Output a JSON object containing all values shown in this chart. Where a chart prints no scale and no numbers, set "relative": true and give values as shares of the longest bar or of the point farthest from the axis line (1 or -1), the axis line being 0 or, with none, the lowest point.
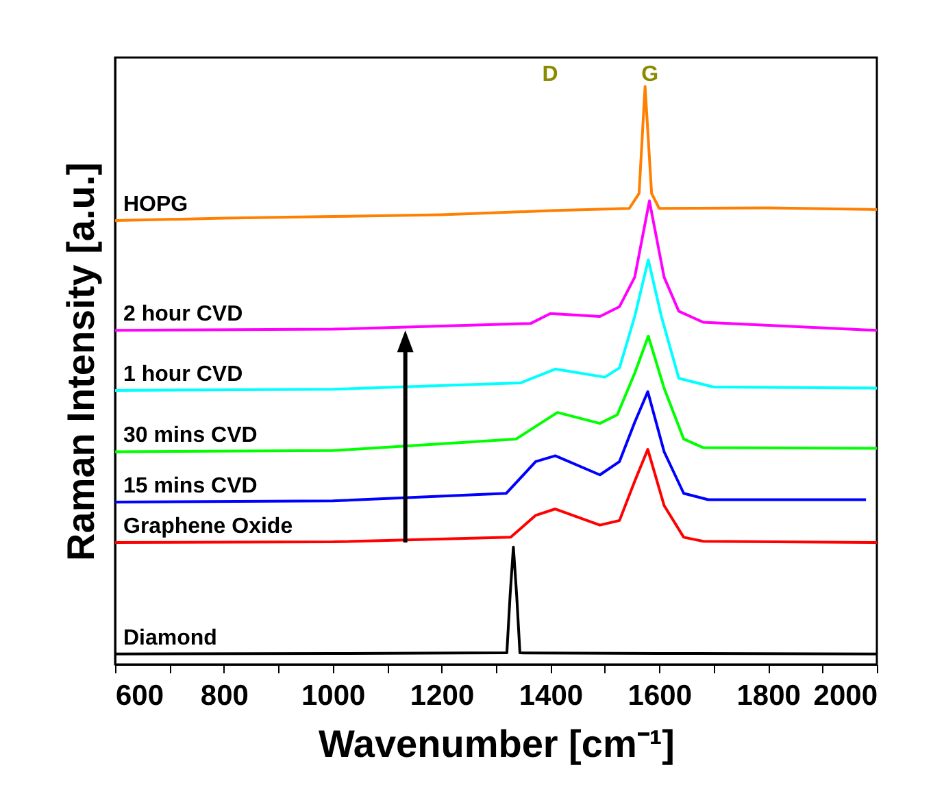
{
  "chart_data": {
    "type": "line",
    "relative": true,
    "xlabel": "Wavenumber [cm⁻¹]",
    "ylabel": "Raman Intensity [a.u.]",
    "xlim": [
      600,
      2000
    ],
    "xticks": [
      600,
      {
        "value": 700,
        "label": null
      },
      800,
      {
        "value": 900,
        "label": null
      },
      1000,
      {
        "value": 1100,
        "label": null
      },
      1200,
      {
        "value": 1300,
        "label": null
      },
      1400,
      {
        "value": 1500,
        "label": null
      },
      1600,
      {
        "value": 1700,
        "label": null
      },
      1800,
      {
        "value": 1900,
        "label": null
      },
      2000
    ],
    "grid": false,
    "legend": false,
    "marker": "none",
    "line_style": "solid",
    "annotations": [
      "D",
      "G"
    ],
    "series": [
      {
        "name": "HOPG",
        "color": "#ff7f00",
        "x": [
          600,
          800,
          1000,
          1200,
          1400,
          1545,
          1563,
          1574,
          1586,
          1600,
          1800,
          2000
        ],
        "values": [
          0.768,
          0.772,
          0.775,
          0.778,
          0.785,
          0.789,
          0.815,
          1.0,
          0.815,
          0.789,
          0.79,
          0.787
        ]
      },
      {
        "name": "2 hour CVD",
        "color": "#ff00ff",
        "x": [
          600,
          1000,
          1364,
          1400,
          1491,
          1527,
          1555,
          1582,
          1609,
          1636,
          1681,
          2000
        ],
        "values": [
          0.578,
          0.58,
          0.59,
          0.607,
          0.602,
          0.619,
          0.67,
          0.802,
          0.67,
          0.611,
          0.592,
          0.578
        ]
      },
      {
        "name": "1 hour CVD",
        "color": "#00ffff",
        "x": [
          600,
          1000,
          1345,
          1409,
          1500,
          1527,
          1555,
          1580,
          1604,
          1636,
          1700,
          2000
        ],
        "values": [
          0.474,
          0.476,
          0.487,
          0.511,
          0.497,
          0.513,
          0.602,
          0.7,
          0.602,
          0.495,
          0.48,
          0.478
        ]
      },
      {
        "name": "30 mins CVD",
        "color": "#00ff00",
        "x": [
          600,
          1000,
          1337,
          1413,
          1491,
          1523,
          1555,
          1580,
          1609,
          1645,
          1681,
          2000
        ],
        "values": [
          0.368,
          0.37,
          0.39,
          0.436,
          0.417,
          0.432,
          0.504,
          0.568,
          0.478,
          0.39,
          0.375,
          0.374
        ]
      },
      {
        "name": "15 mins CVD",
        "color": "#0000ff",
        "x": [
          600,
          1000,
          1319,
          1373,
          1409,
          1491,
          1527,
          1555,
          1579,
          1609,
          1645,
          1690,
          1980
        ],
        "values": [
          0.281,
          0.283,
          0.296,
          0.351,
          0.361,
          0.328,
          0.351,
          0.419,
          0.472,
          0.368,
          0.296,
          0.285,
          0.285
        ]
      },
      {
        "name": "Graphene Oxide",
        "color": "#ff0000",
        "x": [
          600,
          1000,
          1327,
          1373,
          1409,
          1491,
          1527,
          1555,
          1579,
          1609,
          1645,
          1681,
          2000
        ],
        "values": [
          0.211,
          0.212,
          0.22,
          0.258,
          0.269,
          0.241,
          0.249,
          0.317,
          0.372,
          0.275,
          0.22,
          0.213,
          0.211
        ]
      },
      {
        "name": "Diamond",
        "color": "#000000",
        "x": [
          600,
          1000,
          1320,
          1326,
          1332,
          1338,
          1344,
          1600,
          2000
        ],
        "values": [
          0.018,
          0.019,
          0.02,
          0.12,
          0.203,
          0.12,
          0.02,
          0.019,
          0.018
        ]
      }
    ]
  }
}
